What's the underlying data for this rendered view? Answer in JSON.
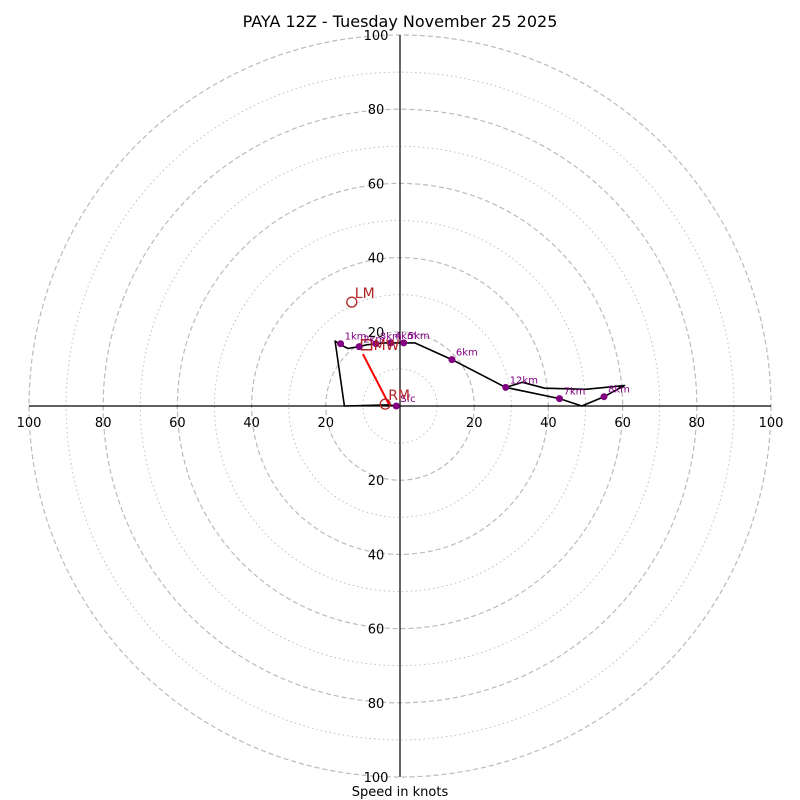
{
  "chart_data": {
    "type": "hodograph",
    "title": "PAYA 12Z - Tuesday November 25 2025",
    "xlabel": "Speed in knots",
    "max_speed": 100,
    "ring_step": 10,
    "labeled_rings": [
      20,
      40,
      60,
      80,
      100
    ],
    "axis_ticks": {
      "top": [
        "20",
        "40",
        "60",
        "80",
        "100"
      ],
      "bottom": [
        "20",
        "40",
        "60",
        "80",
        "100"
      ],
      "left": [
        "100",
        "80",
        "60",
        "40",
        "20"
      ],
      "right": [
        "20",
        "40",
        "60",
        "80",
        "100"
      ]
    },
    "profile_uv": [
      [
        -1,
        0
      ],
      [
        -3,
        0.3
      ],
      [
        -15,
        0
      ],
      [
        -17.5,
        17.5
      ],
      [
        -16,
        16.5
      ],
      [
        -14,
        15.5
      ],
      [
        -11,
        16
      ],
      [
        -9,
        16.5
      ],
      [
        -6,
        16.8
      ],
      [
        -4,
        17
      ],
      [
        -2,
        17
      ],
      [
        0,
        17
      ],
      [
        2,
        17
      ],
      [
        4,
        17
      ],
      [
        14,
        12.5
      ],
      [
        28.5,
        5
      ],
      [
        43,
        2
      ],
      [
        49,
        0
      ],
      [
        55,
        2.5
      ],
      [
        60.5,
        5.5
      ],
      [
        50,
        4.5
      ],
      [
        39,
        4.8
      ],
      [
        33,
        6.4
      ],
      [
        28.5,
        5
      ]
    ],
    "height_markers": [
      {
        "label": "Sfc",
        "u": -1,
        "v": 0
      },
      {
        "label": "1km",
        "u": -16,
        "v": 16.8
      },
      {
        "label": "2km",
        "u": -11,
        "v": 16
      },
      {
        "label": "3km",
        "u": -6.5,
        "v": 16.8
      },
      {
        "label": "4km",
        "u": -2.5,
        "v": 17
      },
      {
        "label": "5km",
        "u": 1,
        "v": 17
      },
      {
        "label": "6km",
        "u": 14,
        "v": 12.5
      },
      {
        "label": "7km",
        "u": 43,
        "v": 2
      },
      {
        "label": "8km",
        "u": 55,
        "v": 2.5
      },
      {
        "label": "12km",
        "u": 28.5,
        "v": 5
      }
    ],
    "storm_motions": [
      {
        "label": "LM",
        "u": -13,
        "v": 28
      },
      {
        "label": "RM",
        "u": -4,
        "v": 0.5
      }
    ],
    "mean_wind": {
      "label": "MW",
      "u": -9,
      "v": 16.5
    },
    "shear_vector": {
      "from": [
        -10,
        14
      ],
      "to": [
        -3,
        0.5
      ]
    },
    "colors": {
      "profile": "#000000",
      "markers": "#800080",
      "storm_motion": "#b22222",
      "shear": "#ff0000",
      "rings": "#bbbbbb",
      "axes": "#000000"
    }
  }
}
